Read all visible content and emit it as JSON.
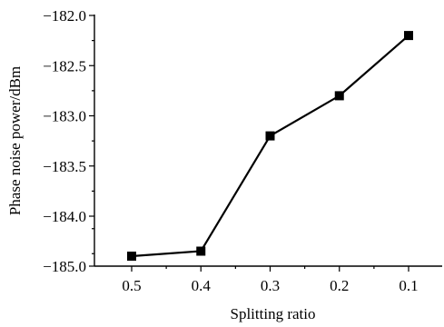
{
  "chart_data": {
    "type": "line",
    "title": "",
    "xlabel": "Splitting ratio",
    "ylabel": "Phase noise power/dBm",
    "x": [
      "0.5",
      "0.4",
      "0.3",
      "0.2",
      "0.1"
    ],
    "series": [
      {
        "values": [
          -184.8,
          -184.7,
          -183.2,
          -182.8,
          -182.2
        ],
        "color": "#000000",
        "marker": "square"
      }
    ],
    "y_ticks": [
      "-185.0",
      "-184.0",
      "-183.5",
      "-183.0",
      "-182.5",
      "-182.0"
    ],
    "y_tick_values": [
      -185.0,
      -184.0,
      -183.5,
      -183.0,
      -182.5,
      -182.0
    ],
    "ylim": [
      -185.0,
      -182.0
    ],
    "grid": false,
    "legend": "none"
  }
}
